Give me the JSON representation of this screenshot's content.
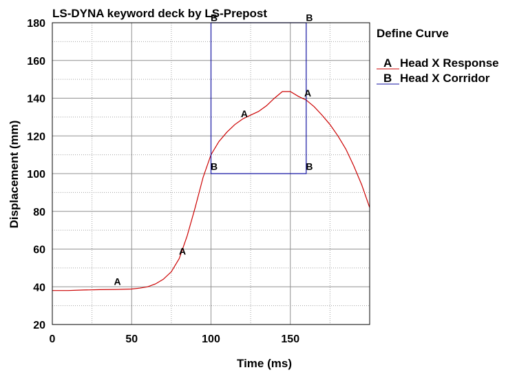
{
  "chart_data": {
    "type": "line",
    "title": "LS-DYNA keyword deck by LS-Prepost",
    "xlabel": "Time (ms)",
    "ylabel": "Displacement (mm)",
    "xlim": [
      0,
      200
    ],
    "ylim": [
      20,
      180
    ],
    "xticks": [
      0,
      50,
      100,
      150
    ],
    "yticks": [
      20,
      40,
      60,
      80,
      100,
      120,
      140,
      160,
      180
    ],
    "grid": true,
    "legend": {
      "title": "Define Curve",
      "placement": "right",
      "entries": [
        {
          "letter": "A",
          "label": "Head X Response",
          "color": "#cc0000"
        },
        {
          "letter": "B",
          "label": "Head X Corridor",
          "color": "#1010a0"
        }
      ]
    },
    "series": [
      {
        "letter": "A",
        "name": "Head X Response",
        "color": "#cc0000",
        "x": [
          0,
          10,
          20,
          30,
          40,
          50,
          55,
          60,
          65,
          70,
          75,
          80,
          85,
          90,
          95,
          100,
          105,
          110,
          115,
          120,
          125,
          130,
          135,
          140,
          145,
          150,
          155,
          160,
          165,
          170,
          175,
          180,
          185,
          190,
          195,
          200
        ],
        "y": [
          38,
          38,
          38.3,
          38.5,
          38.6,
          38.8,
          39.3,
          40,
          41.5,
          44,
          48,
          55,
          67,
          82,
          98,
          110,
          117,
          122,
          126,
          129,
          131,
          133,
          136,
          140,
          143.5,
          143.5,
          141,
          139,
          135.5,
          131,
          126,
          120,
          113,
          104,
          94,
          82
        ]
      },
      {
        "letter": "B",
        "name": "Head X Corridor",
        "color": "#1010a0",
        "x": [
          100,
          160,
          160,
          100,
          100
        ],
        "y": [
          180,
          180,
          100,
          100,
          180
        ]
      }
    ],
    "markers": [
      {
        "series": "A",
        "x": 41,
        "y": 41
      },
      {
        "series": "A",
        "x": 82,
        "y": 57
      },
      {
        "series": "A",
        "x": 121,
        "y": 130
      },
      {
        "series": "A",
        "x": 161,
        "y": 141
      },
      {
        "series": "B",
        "x": 102,
        "y": 181
      },
      {
        "series": "B",
        "x": 162,
        "y": 181
      },
      {
        "series": "B",
        "x": 102,
        "y": 102
      },
      {
        "series": "B",
        "x": 162,
        "y": 102
      }
    ]
  }
}
